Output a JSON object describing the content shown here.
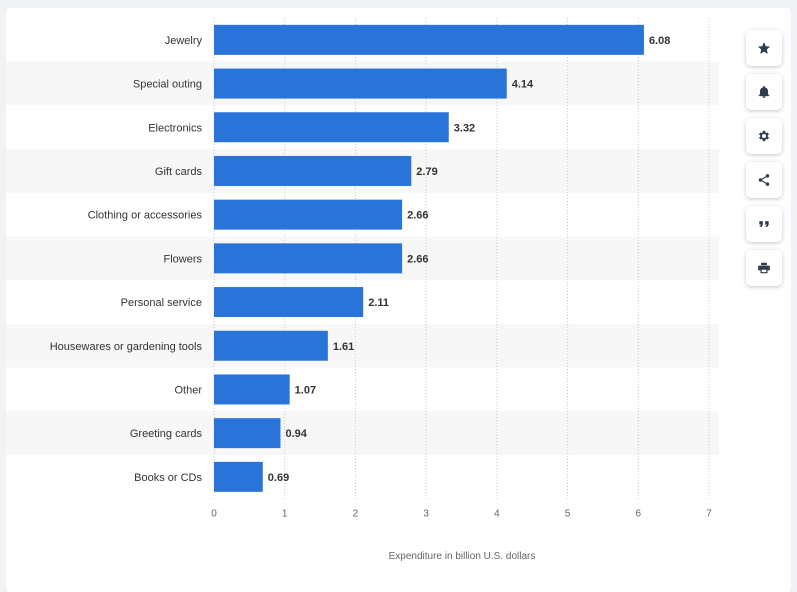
{
  "chart_data": {
    "type": "bar",
    "orientation": "horizontal",
    "categories": [
      "Jewelry",
      "Special outing",
      "Electronics",
      "Gift cards",
      "Clothing or accessories",
      "Flowers",
      "Personal service",
      "Housewares or gardening tools",
      "Other",
      "Greeting cards",
      "Books or CDs"
    ],
    "values": [
      6.08,
      4.14,
      3.32,
      2.79,
      2.66,
      2.66,
      2.11,
      1.61,
      1.07,
      0.94,
      0.69
    ],
    "value_labels": [
      "6.08",
      "4.14",
      "3.32",
      "2.79",
      "2.66",
      "2.66",
      "2.11",
      "1.61",
      "1.07",
      "0.94",
      "0.69"
    ],
    "xlabel": "Expenditure in billion U.S. dollars",
    "xlim": [
      0,
      7
    ],
    "xticks": [
      "0",
      "1",
      "2",
      "3",
      "4",
      "5",
      "6",
      "7"
    ],
    "grid": "vertical-dotted",
    "bar_color": "#2a74d9",
    "band_color": "#f7f7f7"
  },
  "toolbar": {
    "buttons": [
      {
        "name": "favorite-button",
        "icon": "star-icon"
      },
      {
        "name": "notification-button",
        "icon": "bell-icon"
      },
      {
        "name": "settings-button",
        "icon": "gear-icon"
      },
      {
        "name": "share-button",
        "icon": "share-icon"
      },
      {
        "name": "cite-button",
        "icon": "quote-icon"
      },
      {
        "name": "print-button",
        "icon": "print-icon"
      }
    ]
  }
}
